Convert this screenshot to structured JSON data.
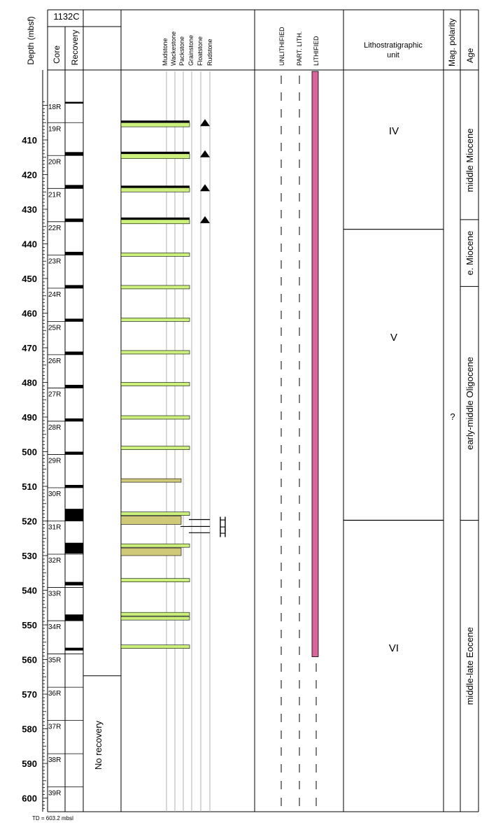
{
  "site": "1132C",
  "headers": {
    "depth": "Depth (mbsf)",
    "core": "Core",
    "recovery": "Recovery",
    "textures": [
      "Mudstone",
      "Wackestone",
      "Packstone",
      "Grainstone",
      "Floatstone",
      "Rudstone"
    ],
    "lithification": [
      "UNLITHIFIED",
      "PART. LITH.",
      "LITHIFIED"
    ],
    "lithostrat_line1": "Lithostratigraphic",
    "lithostrat_line2": "unit",
    "mag_polarity": "Mag. polarity",
    "age": "Age"
  },
  "depth_ticks": [
    "410",
    "420",
    "430",
    "440",
    "450",
    "460",
    "470",
    "480",
    "490",
    "500",
    "510",
    "520",
    "530",
    "540",
    "550",
    "560",
    "570",
    "580",
    "590",
    "600"
  ],
  "depth_range_mbsf": [
    398.7,
    605.5
  ],
  "cores": [
    {
      "label": "18R",
      "top": 398.7,
      "bottom": 405.0,
      "recovery_to": 405.0
    },
    {
      "label": "19R",
      "top": 405.0,
      "bottom": 414.5,
      "recovery_to": 414.5
    },
    {
      "label": "20R",
      "top": 414.5,
      "bottom": 424.0,
      "recovery_to": 424.0
    },
    {
      "label": "21R",
      "top": 424.0,
      "bottom": 433.6,
      "recovery_to": 433.6
    },
    {
      "label": "22R",
      "top": 433.6,
      "bottom": 443.2,
      "recovery_to": 443.2
    },
    {
      "label": "23R",
      "top": 443.2,
      "bottom": 452.8,
      "recovery_to": 452.8
    },
    {
      "label": "24R",
      "top": 452.8,
      "bottom": 462.4,
      "recovery_to": 462.4
    },
    {
      "label": "25R",
      "top": 462.4,
      "bottom": 472.0,
      "recovery_to": 472.0
    },
    {
      "label": "26R",
      "top": 472.0,
      "bottom": 481.6,
      "recovery_to": 481.6
    },
    {
      "label": "27R",
      "top": 481.6,
      "bottom": 491.2,
      "recovery_to": 491.2
    },
    {
      "label": "28R",
      "top": 491.2,
      "bottom": 500.8,
      "recovery_to": 500.8
    },
    {
      "label": "29R",
      "top": 500.8,
      "bottom": 510.4,
      "recovery_to": 510.4
    },
    {
      "label": "30R",
      "top": 510.4,
      "bottom": 520.0,
      "recovery_to": 520.0
    },
    {
      "label": "31R",
      "top": 520.0,
      "bottom": 529.6,
      "recovery_to": 520.0
    },
    {
      "label": "32R",
      "top": 529.6,
      "bottom": 539.2,
      "recovery_to": 529.6
    },
    {
      "label": "33R",
      "top": 539.2,
      "bottom": 548.8,
      "recovery_to": 539.2
    },
    {
      "label": "34R",
      "top": 548.8,
      "bottom": 558.4,
      "recovery_to": 548.8
    },
    {
      "label": "35R",
      "top": 558.4,
      "bottom": 568.0,
      "recovery_to": 558.4
    },
    {
      "label": "36R",
      "top": 568.0,
      "bottom": 577.6,
      "recovery_to": 568.0
    },
    {
      "label": "37R",
      "top": 577.6,
      "bottom": 587.2,
      "recovery_to": 587.2
    },
    {
      "label": "38R",
      "top": 587.2,
      "bottom": 596.8,
      "recovery_to": 596.8
    },
    {
      "label": "39R",
      "top": 596.8,
      "bottom": 605.5,
      "recovery_to": 605.5
    }
  ],
  "recovery_blocks": [
    {
      "top": 399.0,
      "bottom": 399.5
    },
    {
      "top": 413.5,
      "bottom": 414.5
    },
    {
      "top": 423.0,
      "bottom": 424.0
    },
    {
      "top": 432.7,
      "bottom": 433.6
    },
    {
      "top": 442.3,
      "bottom": 443.2
    },
    {
      "top": 451.9,
      "bottom": 452.8
    },
    {
      "top": 461.6,
      "bottom": 462.4
    },
    {
      "top": 471.1,
      "bottom": 472.0
    },
    {
      "top": 480.7,
      "bottom": 481.6
    },
    {
      "top": 490.4,
      "bottom": 491.2
    },
    {
      "top": 500.0,
      "bottom": 500.8
    },
    {
      "top": 509.6,
      "bottom": 510.4
    },
    {
      "top": 516.5,
      "bottom": 520.0
    },
    {
      "top": 526.3,
      "bottom": 529.4
    },
    {
      "top": 537.6,
      "bottom": 538.6
    },
    {
      "top": 547.0,
      "bottom": 548.8
    },
    {
      "top": 556.6,
      "bottom": 557.4
    }
  ],
  "no_recovery": {
    "label": "No recovery",
    "top_mbsf": 564.7
  },
  "beds": [
    {
      "top": 405.0,
      "bottom": 406.2,
      "texture": "Grainstone",
      "black_top": true,
      "triangle": true
    },
    {
      "top": 414.0,
      "bottom": 415.4,
      "texture": "Grainstone",
      "black_top": true,
      "triangle": true
    },
    {
      "top": 423.8,
      "bottom": 425.0,
      "texture": "Grainstone",
      "black_top": true,
      "triangle": true
    },
    {
      "top": 433.0,
      "bottom": 434.2,
      "texture": "Grainstone",
      "black_top": true,
      "triangle": true
    },
    {
      "top": 442.6,
      "bottom": 443.6,
      "texture": "Grainstone"
    },
    {
      "top": 452.0,
      "bottom": 453.0,
      "texture": "Grainstone"
    },
    {
      "top": 461.4,
      "bottom": 462.4,
      "texture": "Grainstone"
    },
    {
      "top": 470.8,
      "bottom": 471.8,
      "texture": "Grainstone"
    },
    {
      "top": 480.0,
      "bottom": 481.0,
      "texture": "Grainstone"
    },
    {
      "top": 489.6,
      "bottom": 490.6,
      "texture": "Grainstone"
    },
    {
      "top": 498.4,
      "bottom": 499.4,
      "texture": "Grainstone"
    },
    {
      "top": 507.8,
      "bottom": 508.8,
      "texture": "Packstone",
      "color": "#d0c978"
    },
    {
      "top": 517.4,
      "bottom": 518.4,
      "texture": "Grainstone"
    },
    {
      "top": 518.6,
      "bottom": 521.0,
      "texture": "Packstone",
      "color": "#d0c978"
    },
    {
      "top": 526.6,
      "bottom": 527.4,
      "texture": "Grainstone"
    },
    {
      "top": 527.8,
      "bottom": 530.0,
      "texture": "Packstone",
      "color": "#d0c978"
    },
    {
      "top": 536.6,
      "bottom": 537.6,
      "texture": "Grainstone"
    },
    {
      "top": 546.4,
      "bottom": 547.2,
      "texture": "Grainstone"
    },
    {
      "top": 547.6,
      "bottom": 548.4,
      "texture": "Grainstone"
    },
    {
      "top": 555.8,
      "bottom": 556.8,
      "texture": "Grainstone"
    }
  ],
  "h_symbol_depths": [
    519.6,
    521.6,
    523.4
  ],
  "lithified_bar": {
    "top": 398.7,
    "bottom": 559.2,
    "color": "#d9669b"
  },
  "units": [
    {
      "label": "IV",
      "top": 398.7,
      "bottom": 435.8
    },
    {
      "label": "V",
      "top": 435.8,
      "bottom": 519.8
    },
    {
      "label": "VI",
      "top": 519.8,
      "bottom": 605.5
    }
  ],
  "mag_polarity_mark": "?",
  "ages": [
    {
      "label": "middle Miocene",
      "top": 398.7,
      "bottom": 433.0
    },
    {
      "label": "e. Miocene",
      "top": 433.0,
      "bottom": 452.3
    },
    {
      "label": "early-middle Oligocene",
      "top": 452.3,
      "bottom": 519.8
    },
    {
      "label": "middle-late Eocene",
      "top": 519.8,
      "bottom": 605.5
    }
  ],
  "footer": "TD = 603.2 mbsl",
  "colors": {
    "grainstone": "#ccf07c",
    "packstone": "#d0c978",
    "lithified": "#d9669b",
    "recovery": "#000000",
    "texture_guides": "#b0b0b0"
  }
}
